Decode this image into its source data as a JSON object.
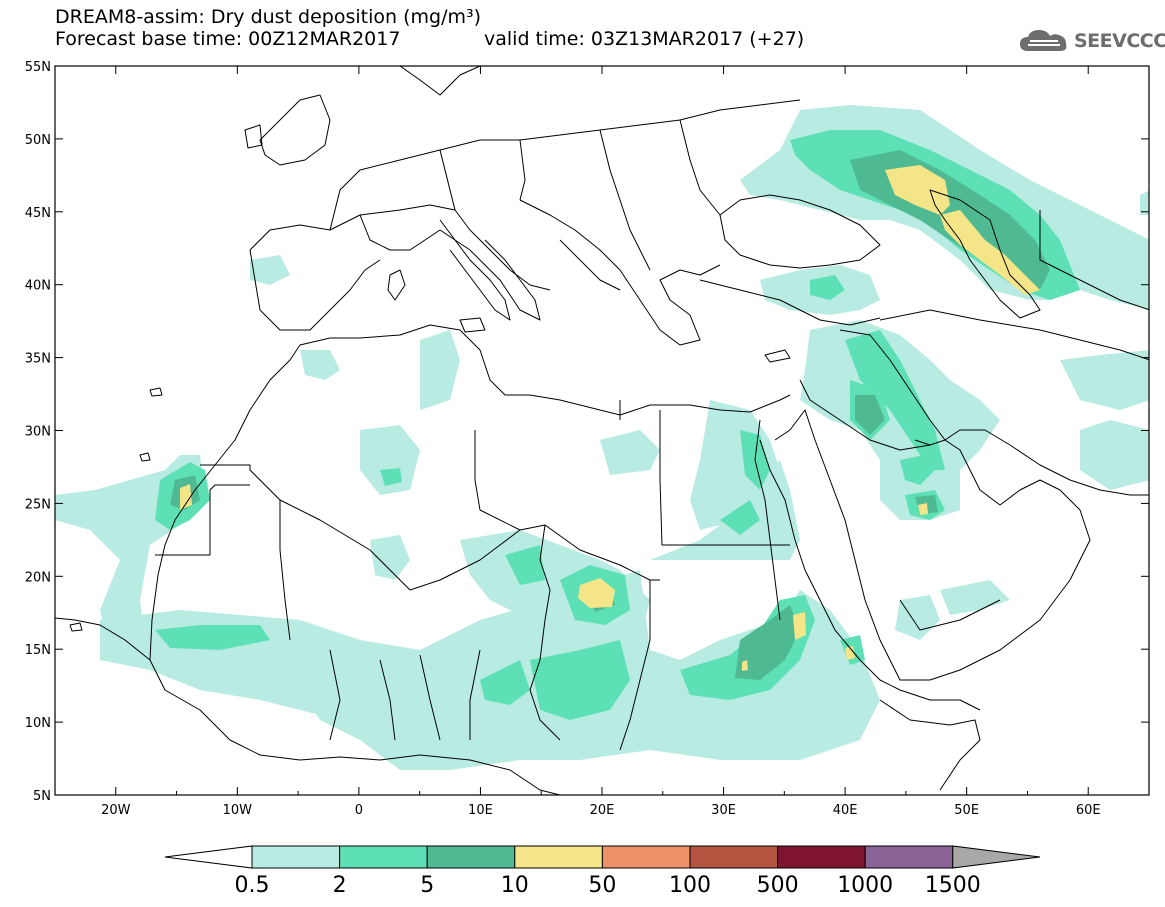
{
  "header": {
    "title": "DREAM8-assim: Dry dust deposition (mg/m³)",
    "base_time": "Forecast base time: 00Z12MAR2017",
    "valid_time": "valid time: 03Z13MAR2017 (+27)"
  },
  "logo": {
    "text": "SEEVCCC",
    "icon": "cloud-icon"
  },
  "axes": {
    "lon_ticks": [
      "20W",
      "10W",
      "0",
      "10E",
      "20E",
      "30E",
      "40E",
      "50E",
      "60E"
    ],
    "lat_ticks": [
      "55N",
      "50N",
      "45N",
      "40N",
      "35N",
      "30N",
      "25N",
      "20N",
      "15N",
      "10N",
      "5N"
    ],
    "lon_range": [
      -25,
      65
    ],
    "lat_range": [
      5,
      55
    ]
  },
  "colorbar": {
    "labels": [
      "0.5",
      "2",
      "5",
      "10",
      "50",
      "100",
      "500",
      "1000",
      "1500"
    ],
    "colors": [
      "#b8ece2",
      "#5ee0b6",
      "#4fba92",
      "#f4e588",
      "#ee9068",
      "#b35440",
      "#7e1430",
      "#8a6497"
    ],
    "under_color": "#ffffff",
    "over_color": "#a8a8a8"
  },
  "colors": {
    "level1": "#b8ece2",
    "level2": "#5ee0b6",
    "level3": "#4fba92",
    "level4": "#f4e588",
    "coast": "#000000"
  }
}
